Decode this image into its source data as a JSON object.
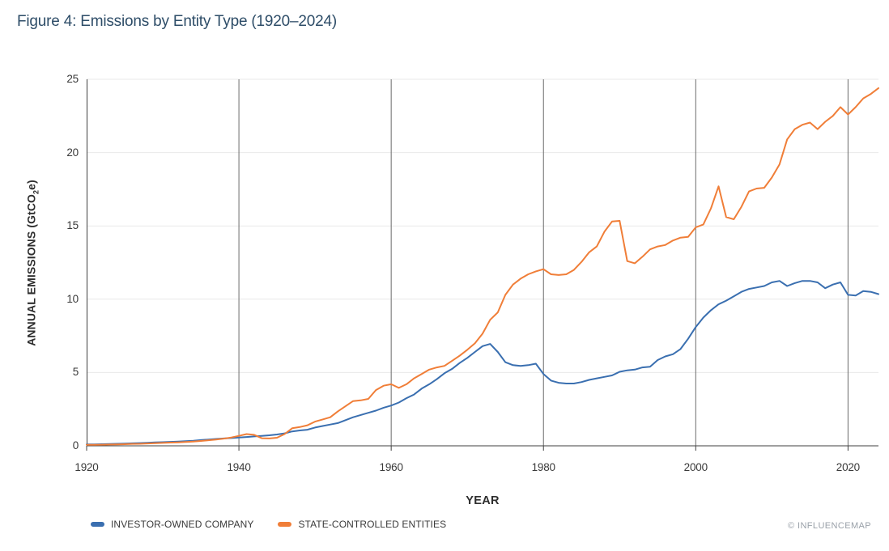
{
  "figure": {
    "title": "Figure 4: Emissions by Entity Type (1920–2024)",
    "watermark": "© INFLUENCEMAP"
  },
  "chart_data": {
    "type": "line",
    "title": "Figure 4: Emissions by Entity Type (1920–2024)",
    "xlabel": "YEAR",
    "ylabel": "ANNUAL EMISSIONS (GtCO2e)",
    "ylabel_parts": {
      "pre": "ANNUAL EMISSIONS (GtCO",
      "sub": "2",
      "post": "e)"
    },
    "x_range": [
      1920,
      2024
    ],
    "x_step": 1,
    "ylim": [
      0,
      25
    ],
    "x_ticks": [
      1920,
      1940,
      1960,
      1980,
      2000,
      2020
    ],
    "y_ticks": [
      0,
      5,
      10,
      15,
      20,
      25
    ],
    "grid": {
      "vertical": [
        1940,
        1960,
        1980,
        2000,
        2020
      ],
      "horizontal": [
        5,
        10,
        15,
        20,
        25
      ],
      "vertical_color": "#6b6b6b",
      "horizontal_color": "#e9e9e9"
    },
    "axis_color": "#404040",
    "legend_position": "bottom-left",
    "series": [
      {
        "id": "investor-owned-company",
        "name": "INVESTOR-OWNED COMPANY",
        "color": "#3A6FB0",
        "values": [
          0.1,
          0.1,
          0.11,
          0.12,
          0.14,
          0.15,
          0.17,
          0.19,
          0.21,
          0.23,
          0.25,
          0.27,
          0.29,
          0.32,
          0.35,
          0.39,
          0.43,
          0.47,
          0.5,
          0.53,
          0.57,
          0.6,
          0.64,
          0.68,
          0.72,
          0.77,
          0.85,
          0.98,
          1.05,
          1.1,
          1.25,
          1.35,
          1.45,
          1.55,
          1.75,
          1.95,
          2.1,
          2.25,
          2.4,
          2.6,
          2.75,
          2.95,
          3.25,
          3.5,
          3.9,
          4.2,
          4.55,
          4.95,
          5.25,
          5.65,
          6.0,
          6.4,
          6.8,
          6.95,
          6.4,
          5.7,
          5.5,
          5.45,
          5.5,
          5.6,
          4.9,
          4.45,
          4.3,
          4.25,
          4.25,
          4.35,
          4.5,
          4.6,
          4.7,
          4.8,
          5.05,
          5.15,
          5.2,
          5.35,
          5.4,
          5.85,
          6.1,
          6.25,
          6.6,
          7.3,
          8.1,
          8.75,
          9.25,
          9.65,
          9.9,
          10.2,
          10.5,
          10.7,
          10.8,
          10.9,
          11.15,
          11.25,
          10.9,
          11.1,
          11.25,
          11.25,
          11.15,
          10.75,
          11.0,
          11.15,
          10.3,
          10.25,
          10.55,
          10.5,
          10.35
        ]
      },
      {
        "id": "state-controlled-entities",
        "name": "STATE-CONTROLLED ENTITIES",
        "color": "#F07E38",
        "values": [
          0.07,
          0.07,
          0.08,
          0.09,
          0.1,
          0.11,
          0.13,
          0.14,
          0.16,
          0.18,
          0.2,
          0.22,
          0.24,
          0.26,
          0.29,
          0.33,
          0.38,
          0.43,
          0.49,
          0.57,
          0.68,
          0.8,
          0.75,
          0.52,
          0.5,
          0.55,
          0.8,
          1.2,
          1.28,
          1.4,
          1.65,
          1.8,
          1.95,
          2.35,
          2.7,
          3.05,
          3.1,
          3.2,
          3.8,
          4.1,
          4.2,
          3.95,
          4.2,
          4.6,
          4.9,
          5.2,
          5.35,
          5.45,
          5.8,
          6.15,
          6.55,
          7.0,
          7.65,
          8.6,
          9.1,
          10.3,
          11.0,
          11.4,
          11.7,
          11.9,
          12.05,
          11.7,
          11.65,
          11.7,
          12.0,
          12.55,
          13.2,
          13.6,
          14.6,
          15.3,
          15.35,
          12.6,
          12.45,
          12.9,
          13.4,
          13.6,
          13.7,
          14.0,
          14.2,
          14.25,
          14.9,
          15.1,
          16.2,
          17.7,
          15.6,
          15.45,
          16.3,
          17.35,
          17.55,
          17.6,
          18.3,
          19.2,
          20.9,
          21.6,
          21.9,
          22.05,
          21.6,
          22.1,
          22.5,
          23.1,
          22.6,
          23.1,
          23.7,
          24.0,
          24.4
        ]
      }
    ]
  }
}
